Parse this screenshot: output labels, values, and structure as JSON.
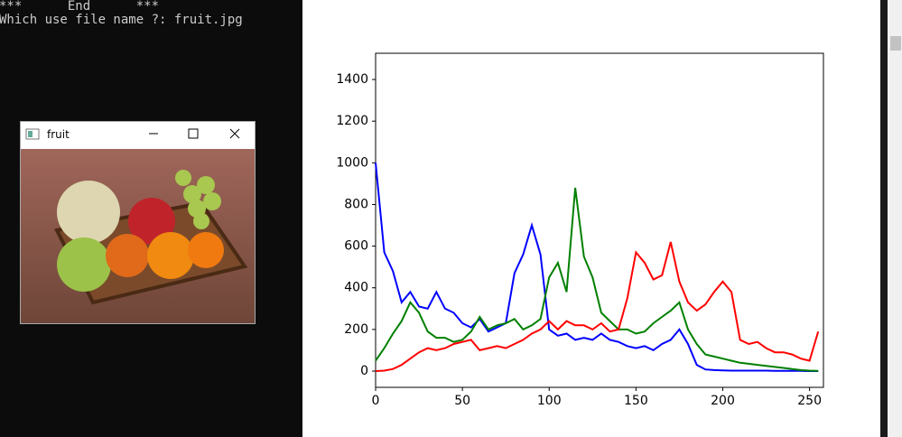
{
  "console": {
    "lines": [
      "***      End      ***",
      "Which use file name ?: fruit.jpg"
    ]
  },
  "window": {
    "title": "fruit"
  },
  "chart_data": {
    "type": "line",
    "x": [
      0,
      5,
      10,
      15,
      20,
      25,
      30,
      35,
      40,
      45,
      50,
      55,
      60,
      65,
      70,
      75,
      80,
      85,
      90,
      95,
      100,
      105,
      110,
      115,
      120,
      125,
      130,
      135,
      140,
      145,
      150,
      155,
      160,
      165,
      170,
      175,
      180,
      185,
      190,
      195,
      200,
      205,
      210,
      215,
      220,
      225,
      230,
      235,
      240,
      245,
      250,
      255
    ],
    "series": [
      {
        "color": "#0000ff",
        "values": [
          1000,
          570,
          480,
          330,
          380,
          310,
          300,
          380,
          300,
          280,
          230,
          210,
          250,
          190,
          210,
          230,
          470,
          560,
          700,
          560,
          200,
          170,
          180,
          150,
          160,
          150,
          180,
          150,
          140,
          120,
          110,
          120,
          100,
          130,
          150,
          200,
          130,
          30,
          8,
          5,
          3,
          2,
          2,
          2,
          2,
          2,
          1,
          1,
          1,
          1,
          0,
          0
        ]
      },
      {
        "color": "#008000",
        "values": [
          50,
          110,
          180,
          240,
          330,
          280,
          190,
          160,
          160,
          140,
          150,
          190,
          260,
          200,
          220,
          230,
          250,
          200,
          220,
          250,
          450,
          520,
          380,
          880,
          550,
          450,
          280,
          240,
          200,
          200,
          180,
          190,
          230,
          260,
          290,
          330,
          200,
          130,
          80,
          70,
          60,
          50,
          40,
          35,
          30,
          25,
          20,
          15,
          10,
          5,
          2,
          1
        ]
      },
      {
        "color": "#ff0000",
        "values": [
          0,
          2,
          10,
          30,
          60,
          90,
          110,
          100,
          110,
          130,
          140,
          150,
          100,
          110,
          120,
          110,
          130,
          150,
          180,
          200,
          240,
          200,
          240,
          220,
          220,
          200,
          230,
          190,
          200,
          350,
          570,
          520,
          440,
          460,
          620,
          430,
          330,
          290,
          320,
          380,
          430,
          380,
          150,
          130,
          140,
          110,
          90,
          90,
          80,
          60,
          50,
          190
        ]
      }
    ],
    "xlim": [
      0,
      258
    ],
    "ylim": [
      -78,
      1526
    ],
    "xticks": [
      0,
      50,
      100,
      150,
      200,
      250
    ],
    "yticks": [
      0,
      200,
      400,
      600,
      800,
      1000,
      1200,
      1400
    ]
  }
}
